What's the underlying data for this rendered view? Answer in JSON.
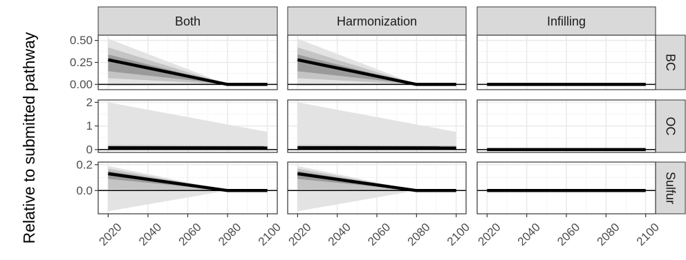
{
  "chart_data": {
    "type": "area",
    "ylabel": "Relative to submitted pathway",
    "facet_columns": [
      "Both",
      "Harmonization",
      "Infilling"
    ],
    "facet_rows": [
      "BC",
      "OC",
      "Sulfur"
    ],
    "x_ticks": [
      2020,
      2040,
      2060,
      2080,
      2100
    ],
    "x_tick_labels": [
      "2020",
      "2040",
      "2060",
      "2080",
      "2100"
    ],
    "xlim": [
      2015,
      2105
    ],
    "rows": [
      {
        "name": "BC",
        "ylim": [
          -0.06,
          0.56
        ],
        "y_ticks": [
          0.0,
          0.25,
          0.5
        ],
        "y_tick_labels": [
          "0.00",
          "0.25",
          "0.50"
        ]
      },
      {
        "name": "OC",
        "ylim": [
          -0.12,
          2.1
        ],
        "y_ticks": [
          0,
          1,
          2
        ],
        "y_tick_labels": [
          "0",
          "1",
          "2"
        ]
      },
      {
        "name": "Sulfur",
        "ylim": [
          -0.18,
          0.22
        ],
        "y_ticks": [
          0.0,
          0.2
        ],
        "y_tick_labels": [
          "0.0",
          "0.2"
        ]
      }
    ],
    "panels": [
      {
        "col": "Both",
        "row": "BC",
        "x": [
          2020,
          2080,
          2100
        ],
        "median": [
          0.28,
          0.0,
          0.0
        ],
        "band_inner": {
          "lower": [
            0.15,
            0.0,
            0.0
          ],
          "upper": [
            0.34,
            0.0,
            0.0
          ]
        },
        "band_mid": {
          "lower": [
            0.07,
            0.0,
            0.0
          ],
          "upper": [
            0.42,
            0.0,
            0.0
          ]
        },
        "band_outer": {
          "lower": [
            -0.02,
            0.0,
            0.0
          ],
          "upper": [
            0.52,
            0.0,
            0.0
          ]
        }
      },
      {
        "col": "Harmonization",
        "row": "BC",
        "x": [
          2020,
          2080,
          2100
        ],
        "median": [
          0.28,
          0.0,
          0.0
        ],
        "band_inner": {
          "lower": [
            0.15,
            0.0,
            0.0
          ],
          "upper": [
            0.34,
            0.0,
            0.0
          ]
        },
        "band_mid": {
          "lower": [
            0.07,
            0.0,
            0.0
          ],
          "upper": [
            0.42,
            0.0,
            0.0
          ]
        },
        "band_outer": {
          "lower": [
            -0.02,
            0.0,
            0.0
          ],
          "upper": [
            0.52,
            0.0,
            0.0
          ]
        }
      },
      {
        "col": "Infilling",
        "row": "BC",
        "x": [
          2020,
          2100
        ],
        "median": [
          0.0,
          0.0
        ]
      },
      {
        "col": "Both",
        "row": "OC",
        "x": [
          2020,
          2100
        ],
        "median": [
          0.08,
          0.07
        ],
        "band_inner": {
          "lower": [
            0.02,
            0.02
          ],
          "upper": [
            0.12,
            0.1
          ]
        },
        "band_mid": {
          "lower": [
            0.0,
            0.0
          ],
          "upper": [
            0.2,
            0.17
          ]
        },
        "band_outer": {
          "lower": [
            0.0,
            0.0
          ],
          "upper": [
            2.0,
            0.75
          ]
        }
      },
      {
        "col": "Harmonization",
        "row": "OC",
        "x": [
          2020,
          2100
        ],
        "median": [
          0.08,
          0.07
        ],
        "band_inner": {
          "lower": [
            0.02,
            0.02
          ],
          "upper": [
            0.12,
            0.1
          ]
        },
        "band_mid": {
          "lower": [
            0.0,
            0.0
          ],
          "upper": [
            0.2,
            0.17
          ]
        },
        "band_outer": {
          "lower": [
            0.0,
            0.0
          ],
          "upper": [
            2.0,
            0.75
          ]
        }
      },
      {
        "col": "Infilling",
        "row": "OC",
        "x": [
          2020,
          2100
        ],
        "median": [
          0.0,
          0.0
        ]
      },
      {
        "col": "Both",
        "row": "Sulfur",
        "x": [
          2020,
          2080,
          2100
        ],
        "median": [
          0.13,
          0.0,
          0.0
        ],
        "band_inner": {
          "lower": [
            0.09,
            0.0,
            0.0
          ],
          "upper": [
            0.15,
            0.0,
            0.0
          ]
        },
        "band_mid": {
          "lower": [
            0.01,
            0.0,
            0.0
          ],
          "upper": [
            0.17,
            0.0,
            0.0
          ]
        },
        "band_outer": {
          "lower": [
            -0.16,
            0.0,
            0.0
          ],
          "upper": [
            0.19,
            0.0,
            0.0
          ]
        }
      },
      {
        "col": "Harmonization",
        "row": "Sulfur",
        "x": [
          2020,
          2080,
          2100
        ],
        "median": [
          0.13,
          0.0,
          0.0
        ],
        "band_inner": {
          "lower": [
            0.09,
            0.0,
            0.0
          ],
          "upper": [
            0.15,
            0.0,
            0.0
          ]
        },
        "band_mid": {
          "lower": [
            0.01,
            0.0,
            0.0
          ],
          "upper": [
            0.17,
            0.0,
            0.0
          ]
        },
        "band_outer": {
          "lower": [
            -0.16,
            0.0,
            0.0
          ],
          "upper": [
            0.19,
            0.0,
            0.0
          ]
        }
      },
      {
        "col": "Infilling",
        "row": "Sulfur",
        "x": [
          2020,
          2100
        ],
        "median": [
          0.0,
          0.0
        ]
      }
    ],
    "colors": {
      "band_outer": "#e3e3e3",
      "band_mid": "#c4c4c4",
      "band_inner": "#9a9a9a",
      "median": "#000000",
      "strip_fill": "#d9d9d9",
      "grid_major": "#ebebeb",
      "grid_minor": "#f5f5f5",
      "panel_border": "#333333"
    },
    "grid": true,
    "legend": "none"
  }
}
